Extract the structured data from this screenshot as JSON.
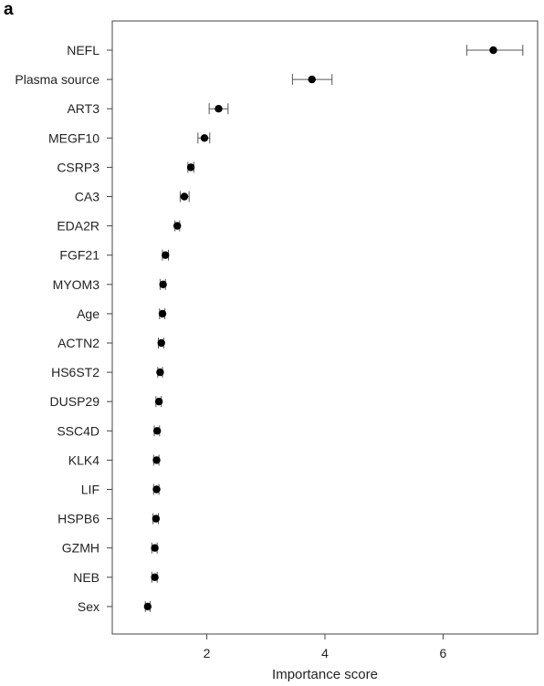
{
  "panel_label": "a",
  "chart_data": {
    "type": "scatter",
    "title": "",
    "xlabel": "Importance score",
    "ylabel": "",
    "xlim": [
      0.4,
      7.6
    ],
    "xticks": [
      2,
      4,
      6
    ],
    "grid": false,
    "legend": "none",
    "point_color": "#000000",
    "error_bar_color": "#555555",
    "categories": [
      "NEFL",
      "Plasma source",
      "ART3",
      "MEGF10",
      "CSRP3",
      "CA3",
      "EDA2R",
      "FGF21",
      "MYOM3",
      "Age",
      "ACTN2",
      "HS6ST2",
      "DUSP29",
      "SSC4D",
      "KLK4",
      "LIF",
      "HSPB6",
      "GZMH",
      "NEB",
      "Sex"
    ],
    "values": [
      6.85,
      3.78,
      2.2,
      1.96,
      1.73,
      1.62,
      1.5,
      1.3,
      1.26,
      1.25,
      1.23,
      1.21,
      1.19,
      1.16,
      1.15,
      1.15,
      1.14,
      1.12,
      1.12,
      1.0
    ],
    "error_low": [
      6.4,
      3.45,
      2.04,
      1.85,
      1.68,
      1.55,
      1.46,
      1.25,
      1.21,
      1.2,
      1.18,
      1.17,
      1.14,
      1.11,
      1.1,
      1.1,
      1.09,
      1.07,
      1.07,
      0.96
    ],
    "error_high": [
      7.35,
      4.12,
      2.36,
      2.05,
      1.78,
      1.7,
      1.54,
      1.35,
      1.3,
      1.29,
      1.27,
      1.25,
      1.23,
      1.2,
      1.19,
      1.19,
      1.18,
      1.16,
      1.16,
      1.04
    ]
  }
}
